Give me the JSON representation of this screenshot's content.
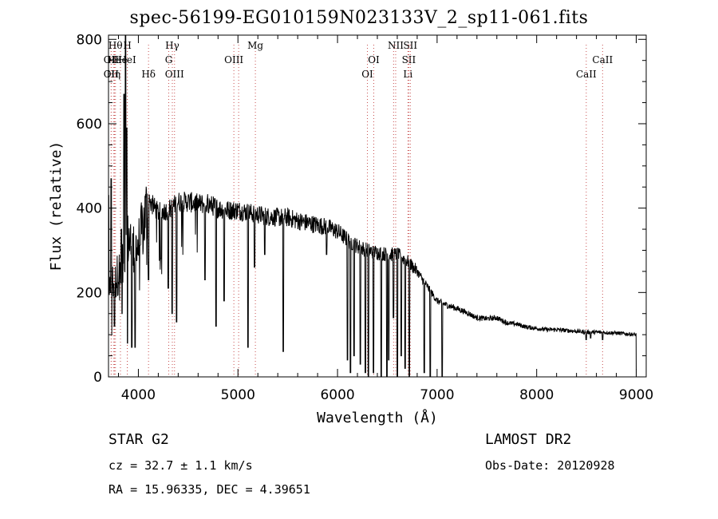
{
  "title": "spec-56199-EG010159N023133V_2_sp11-061.fits",
  "info": {
    "class_line": "STAR    G2",
    "survey": "LAMOST DR2",
    "cz_line": "cz = 32.7 ± 1.1 km/s",
    "obs_date": "Obs-Date: 20120928",
    "radec_line": "RA =  15.96335, DEC =   4.39651"
  },
  "chart_data": {
    "type": "line",
    "title": "spec-56199-EG010159N023133V_2_sp11-061.fits",
    "xlabel": "Wavelength (Å)",
    "ylabel": "Flux (relative)",
    "xlim": [
      3700,
      9100
    ],
    "ylim": [
      0,
      810
    ],
    "xticks": [
      4000,
      5000,
      6000,
      7000,
      8000,
      9000
    ],
    "yticks": [
      0,
      200,
      400,
      600,
      800
    ],
    "grid": false,
    "line_color": "#000000",
    "marker_color": "#c85050",
    "continuum": [
      [
        3700,
        140
      ],
      [
        3720,
        230
      ],
      [
        3760,
        220
      ],
      [
        3800,
        250
      ],
      [
        3850,
        260
      ],
      [
        3900,
        330
      ],
      [
        3950,
        300
      ],
      [
        4000,
        310
      ],
      [
        4050,
        360
      ],
      [
        4100,
        420
      ],
      [
        4200,
        390
      ],
      [
        4300,
        395
      ],
      [
        4400,
        415
      ],
      [
        4500,
        415
      ],
      [
        4600,
        410
      ],
      [
        4700,
        410
      ],
      [
        4800,
        400
      ],
      [
        4900,
        395
      ],
      [
        5000,
        395
      ],
      [
        5100,
        390
      ],
      [
        5200,
        385
      ],
      [
        5300,
        380
      ],
      [
        5400,
        378
      ],
      [
        5500,
        378
      ],
      [
        5600,
        370
      ],
      [
        5700,
        365
      ],
      [
        5800,
        360
      ],
      [
        5900,
        355
      ],
      [
        6000,
        345
      ],
      [
        6100,
        325
      ],
      [
        6200,
        310
      ],
      [
        6300,
        300
      ],
      [
        6400,
        295
      ],
      [
        6500,
        290
      ],
      [
        6600,
        290
      ],
      [
        6700,
        275
      ],
      [
        6800,
        250
      ],
      [
        6900,
        215
      ],
      [
        7000,
        180
      ],
      [
        7100,
        170
      ],
      [
        7200,
        162
      ],
      [
        7300,
        152
      ],
      [
        7400,
        140
      ],
      [
        7500,
        138
      ],
      [
        7600,
        140
      ],
      [
        7700,
        128
      ],
      [
        7800,
        125
      ],
      [
        7900,
        118
      ],
      [
        8000,
        115
      ],
      [
        8100,
        112
      ],
      [
        8200,
        112
      ],
      [
        8300,
        110
      ],
      [
        8400,
        108
      ],
      [
        8500,
        106
      ],
      [
        8600,
        106
      ],
      [
        8700,
        105
      ],
      [
        8800,
        104
      ],
      [
        8900,
        102
      ],
      [
        9000,
        100
      ]
    ],
    "absorption_lines": [
      {
        "x": 3730,
        "y": 100
      },
      {
        "x": 3760,
        "y": 120
      },
      {
        "x": 3835,
        "y": 150
      },
      {
        "x": 3890,
        "y": 80
      },
      {
        "x": 3934,
        "y": 70
      },
      {
        "x": 3968,
        "y": 70
      },
      {
        "x": 4101,
        "y": 230
      },
      {
        "x": 4226,
        "y": 280
      },
      {
        "x": 4300,
        "y": 210
      },
      {
        "x": 4340,
        "y": 150
      },
      {
        "x": 4383,
        "y": 130
      },
      {
        "x": 4668,
        "y": 230
      },
      {
        "x": 4780,
        "y": 120
      },
      {
        "x": 4861,
        "y": 180
      },
      {
        "x": 5100,
        "y": 70
      },
      {
        "x": 5167,
        "y": 260
      },
      {
        "x": 5270,
        "y": 290
      },
      {
        "x": 5455,
        "y": 60
      },
      {
        "x": 5890,
        "y": 290
      },
      {
        "x": 6100,
        "y": 40
      },
      {
        "x": 6130,
        "y": 10
      },
      {
        "x": 6165,
        "y": 50
      },
      {
        "x": 6230,
        "y": 30
      },
      {
        "x": 6280,
        "y": 10
      },
      {
        "x": 6310,
        "y": 0
      },
      {
        "x": 6360,
        "y": 10
      },
      {
        "x": 6440,
        "y": 0
      },
      {
        "x": 6495,
        "y": 0
      },
      {
        "x": 6515,
        "y": 40
      },
      {
        "x": 6563,
        "y": 140
      },
      {
        "x": 6600,
        "y": 0
      },
      {
        "x": 6640,
        "y": 50
      },
      {
        "x": 6680,
        "y": 20
      },
      {
        "x": 6720,
        "y": 0
      },
      {
        "x": 6870,
        "y": 10
      },
      {
        "x": 6930,
        "y": 0
      },
      {
        "x": 7050,
        "y": 0
      },
      {
        "x": 8498,
        "y": 88
      },
      {
        "x": 8542,
        "y": 92
      },
      {
        "x": 8662,
        "y": 88
      }
    ],
    "emission_lines": [
      {
        "x": 3727,
        "y": 470
      },
      {
        "x": 3830,
        "y": 350
      },
      {
        "x": 3855,
        "y": 670
      },
      {
        "x": 3870,
        "y": 810
      },
      {
        "x": 3882,
        "y": 590
      },
      {
        "x": 3700,
        "y": 430
      }
    ],
    "line_markers": [
      {
        "x": 3727,
        "row": 2,
        "label": "OII"
      },
      {
        "x": 3750,
        "row": 2,
        "label": "Hη"
      },
      {
        "x": 3727,
        "row": 1,
        "label": "OII"
      },
      {
        "x": 3760,
        "row": 1,
        "label": "He"
      },
      {
        "x": 3820,
        "row": 1,
        "label": "He"
      },
      {
        "x": 3770,
        "row": 0,
        "label": "Hθ"
      },
      {
        "x": 3889,
        "row": 0,
        "label": "H"
      },
      {
        "x": 3889,
        "row": 1,
        "label": "HeI"
      },
      {
        "x": 4102,
        "row": 2,
        "label": "Hδ"
      },
      {
        "x": 4341,
        "row": 0,
        "label": "Hγ"
      },
      {
        "x": 4305,
        "row": 1,
        "label": "G"
      },
      {
        "x": 4363,
        "row": 2,
        "label": "OIII"
      },
      {
        "x": 4959,
        "row": 1,
        "label": "OIII"
      },
      {
        "x": 5007,
        "row": -1,
        "label": ""
      },
      {
        "x": 5175,
        "row": 0,
        "label": "Mg"
      },
      {
        "x": 6300,
        "row": 2,
        "label": "OI"
      },
      {
        "x": 6364,
        "row": 1,
        "label": "OI"
      },
      {
        "x": 6563,
        "row": -1,
        "label": ""
      },
      {
        "x": 6584,
        "row": 0,
        "label": "NII"
      },
      {
        "x": 6707,
        "row": 2,
        "label": "Li"
      },
      {
        "x": 6716,
        "row": 1,
        "label": "SII"
      },
      {
        "x": 6731,
        "row": 0,
        "label": "SII"
      },
      {
        "x": 8498,
        "row": 2,
        "label": "CaII"
      },
      {
        "x": 8662,
        "row": 1,
        "label": "CaII"
      }
    ]
  }
}
